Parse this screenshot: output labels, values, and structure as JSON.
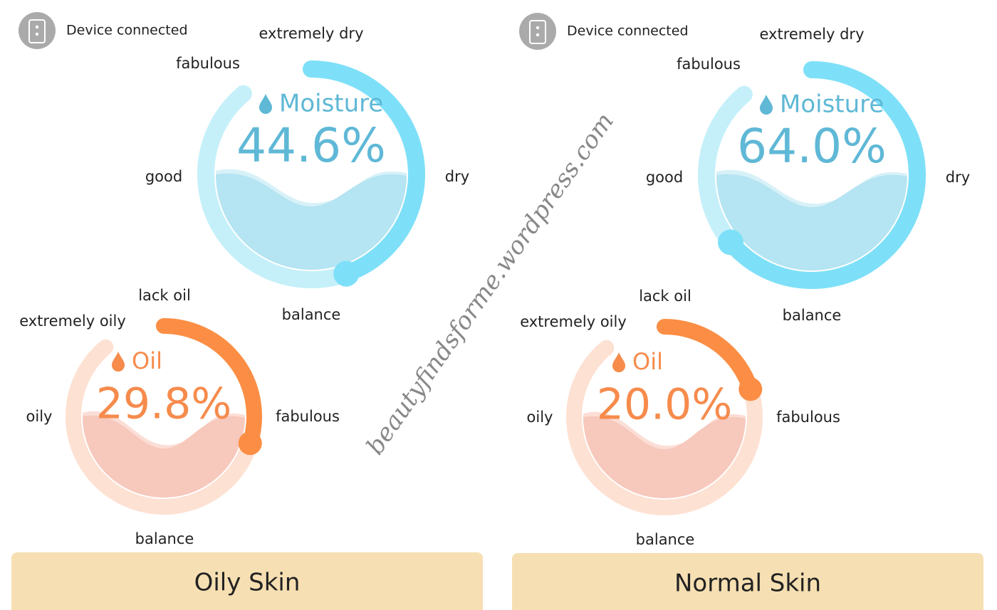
{
  "panels": [
    {
      "status": "Device connected",
      "gauges": [
        {
          "title": "Moisture",
          "reading": {
            "value": 44.6,
            "label": "44.6%"
          },
          "levels": [
            "extremely dry",
            "dry",
            "balance",
            "good",
            "fabulous"
          ]
        },
        {
          "title": "Oil",
          "reading": {
            "value": 29.8,
            "label": "29.8%"
          },
          "levels": [
            "lack oil",
            "fabulous",
            "balance",
            "oily",
            "extremely oily"
          ]
        }
      ],
      "result": "Oily Skin"
    },
    {
      "status": "Device connected",
      "gauges": [
        {
          "title": "Moisture",
          "reading": {
            "value": 64.0,
            "label": "64.0%"
          },
          "levels": [
            "extremely dry",
            "dry",
            "balance",
            "good",
            "fabulous"
          ]
        },
        {
          "title": "Oil",
          "reading": {
            "value": 20.0,
            "label": "20.0%"
          },
          "levels": [
            "lack oil",
            "fabulous",
            "balance",
            "oily",
            "extremely oily"
          ]
        }
      ],
      "result": "Normal Skin"
    }
  ],
  "watermark": "beautyfindsforme.wordpress.com"
}
